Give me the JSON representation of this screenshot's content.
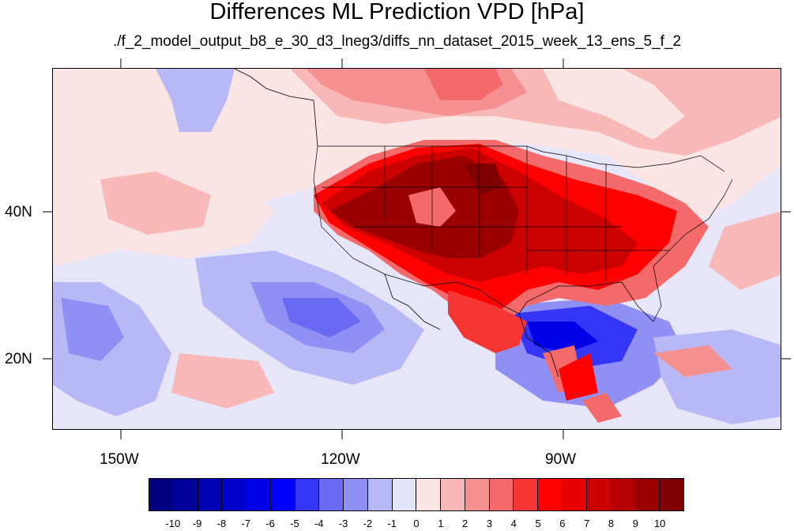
{
  "title": "Differences ML Prediction VPD [hPa]",
  "subtitle": "./f_2_model_output_b8_e_30_d3_lneg3/diffs_nn_dataset_2015_week_13_ens_5_f_2",
  "axes": {
    "lon_labels": [
      "150W",
      "120W",
      "90W"
    ],
    "lat_labels": [
      "40N",
      "20N"
    ]
  },
  "colorbar": {
    "labels": [
      "-10",
      "-9",
      "-8",
      "-7",
      "-6",
      "-5",
      "-4",
      "-3",
      "-2",
      "-1",
      "0",
      "1",
      "2",
      "3",
      "4",
      "5",
      "6",
      "7",
      "8",
      "9",
      "10"
    ],
    "colors": [
      "#000080",
      "#00009a",
      "#0000b4",
      "#0000cd",
      "#0000e6",
      "#0000ff",
      "#3535f6",
      "#6969f4",
      "#9090f4",
      "#b8b8f6",
      "#e4e4f8",
      "#fbe4e4",
      "#f8b8b8",
      "#f49090",
      "#f46969",
      "#f63535",
      "#ff0000",
      "#e60000",
      "#cd0000",
      "#b40000",
      "#9a0000",
      "#800000"
    ]
  },
  "map": {
    "projection": "cylindrical equidistant",
    "lon_range": [
      -159,
      -60
    ],
    "lat_range": [
      11,
      60
    ],
    "field": "VPD difference (hPa)"
  }
}
